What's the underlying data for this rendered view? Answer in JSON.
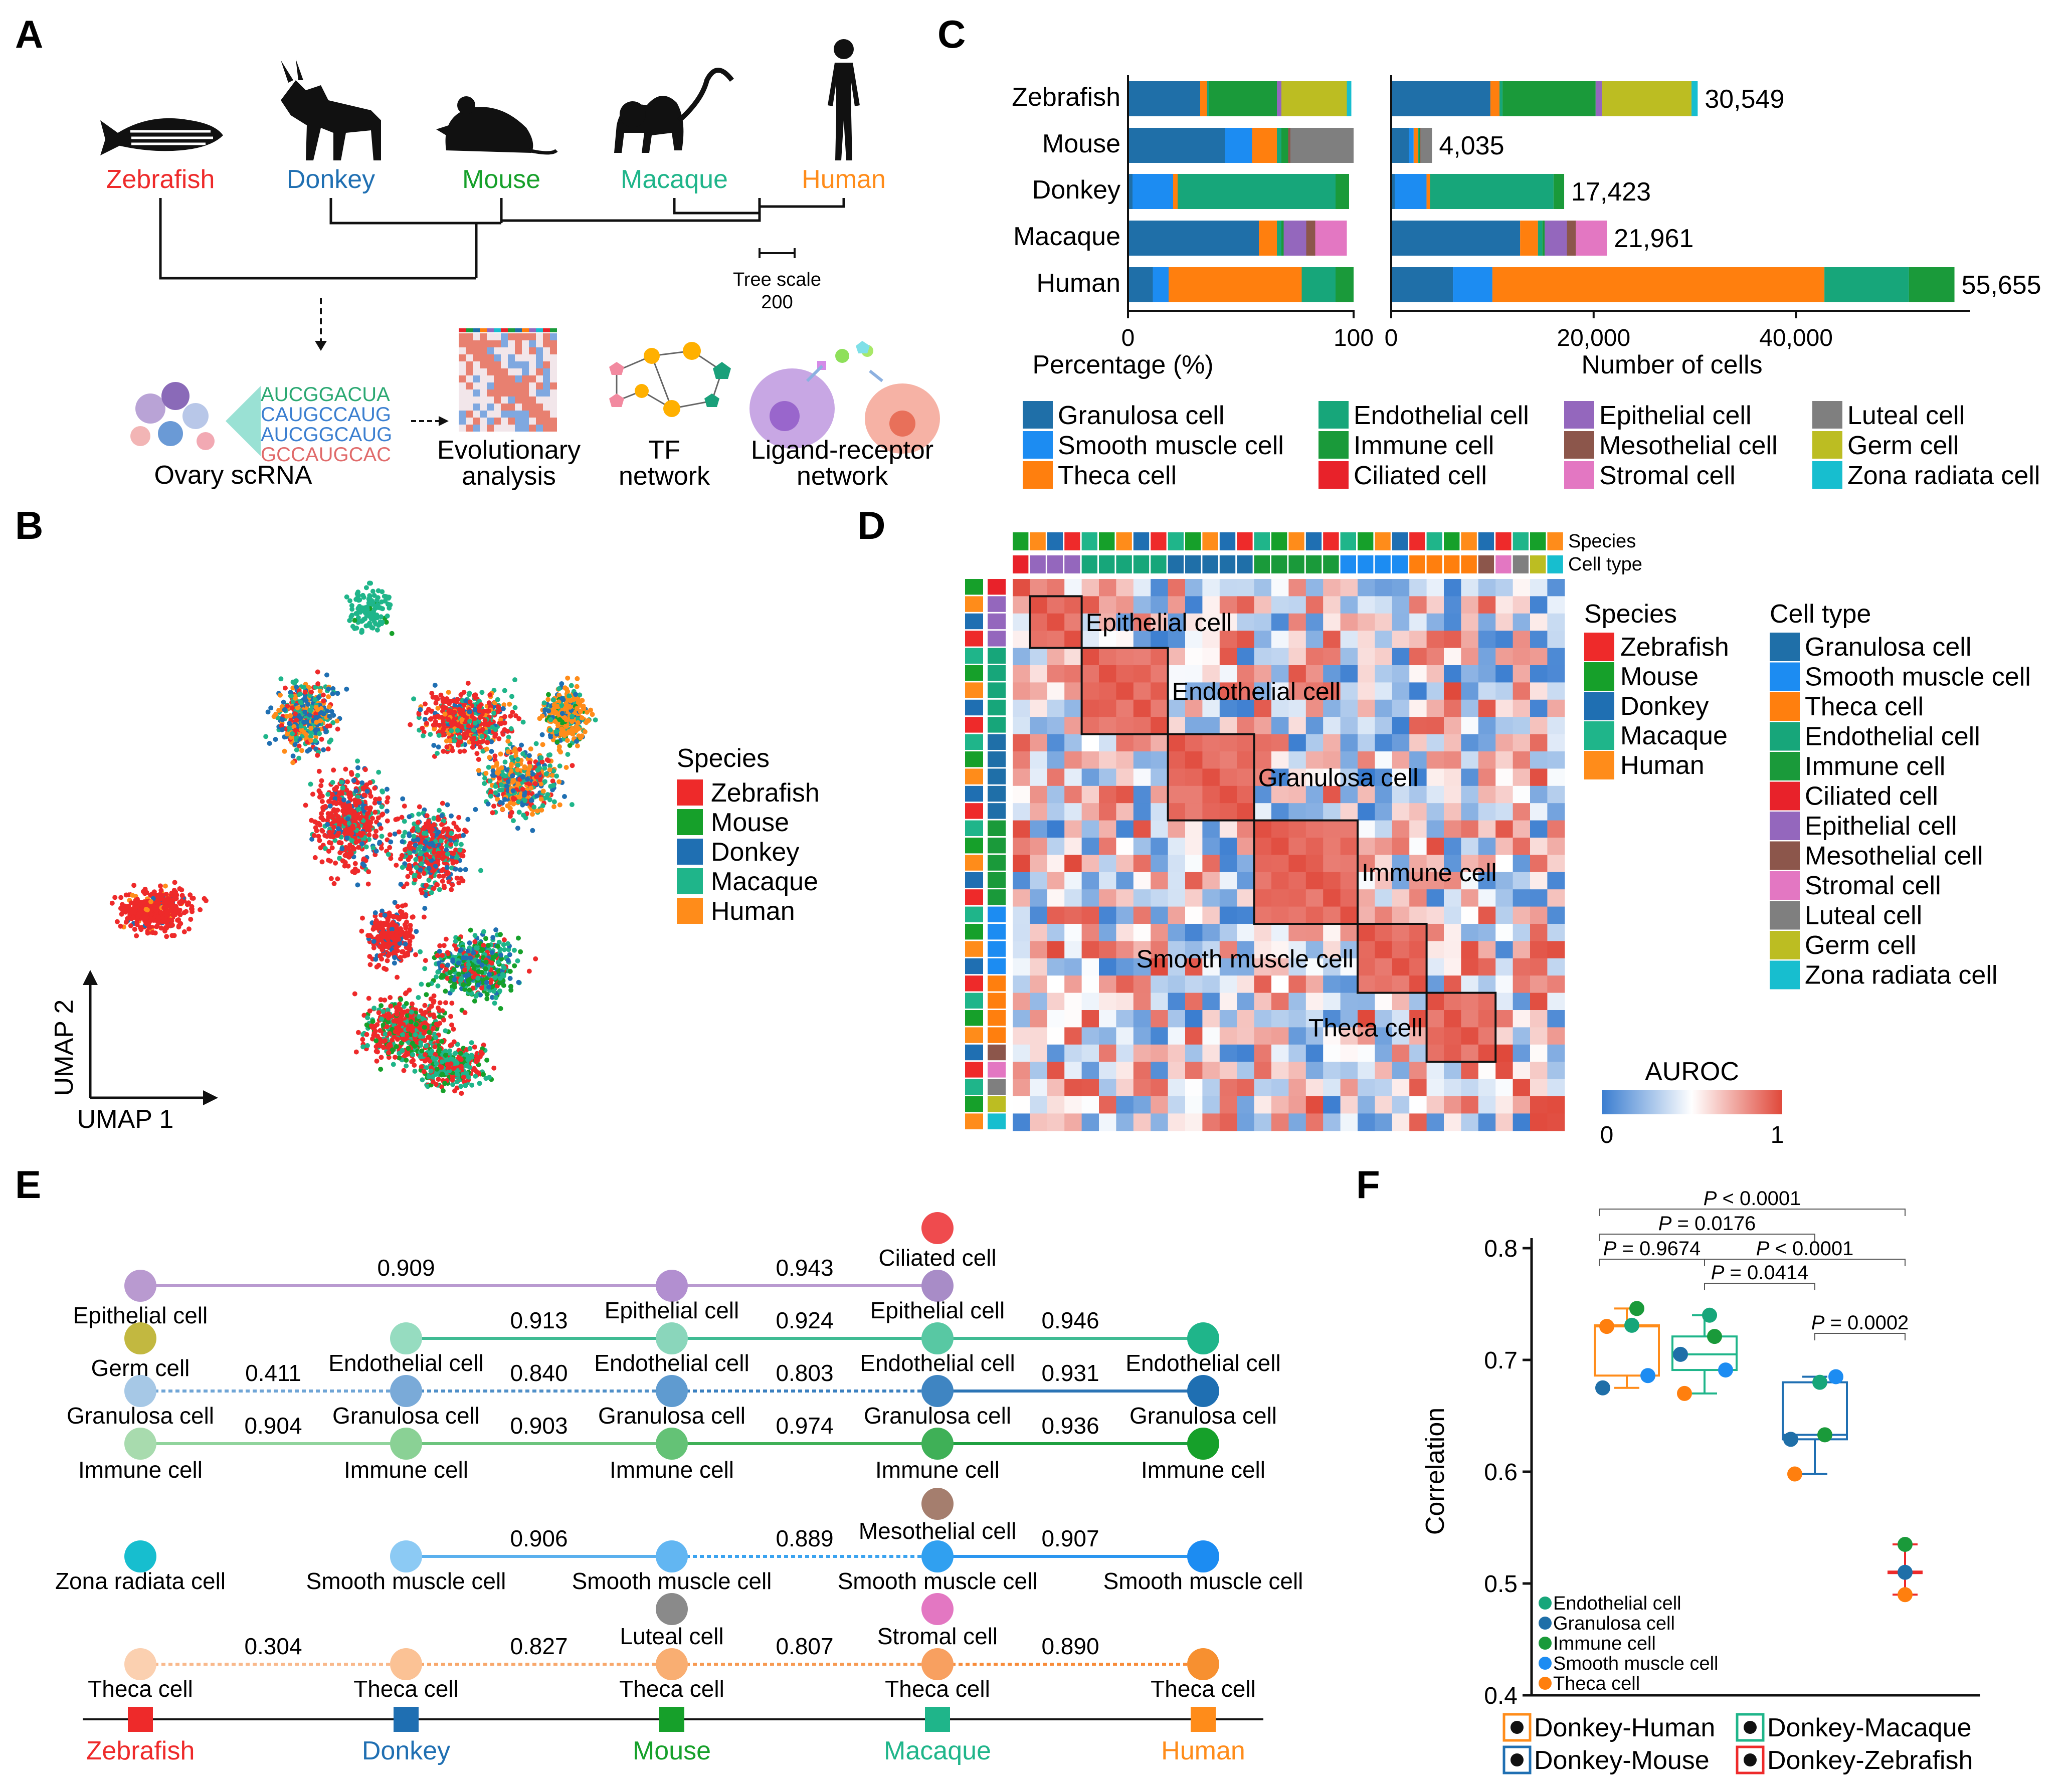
{
  "colors": {
    "Zebrafish": "#ee2a2a",
    "Mouse": "#16a02a",
    "Donkey": "#1f6fb2",
    "Macaque": "#1fb58a",
    "Human": "#ff8c1a",
    "Granulosa cell": "#1f6fa8",
    "Smooth muscle cell": "#1c8cf2",
    "Theca cell": "#ff7f0e",
    "Endothelial cell": "#17a67a",
    "Immune cell": "#1a9a3a",
    "Ciliated cell": "#e8222a",
    "Epithelial cell": "#9467bd",
    "Mesothelial cell": "#8c564b",
    "Stromal cell": "#e377c2",
    "Luteal cell": "#7f7f7f",
    "Germ cell": "#bcbd22",
    "Zona radiata cell": "#17becf"
  },
  "panelA": {
    "letter": "A",
    "species": [
      "Zebrafish",
      "Donkey",
      "Mouse",
      "Macaque",
      "Human"
    ],
    "tree_scale_label": "Tree scale",
    "tree_scale_value": "200",
    "seq_lines": [
      "AUCGGACUA",
      "CAUGCCAUG",
      "AUCGGCAUG",
      "GCCAUGCAC"
    ],
    "workflow": [
      "Ovary scRNA",
      "Evolutionary analysis",
      "TF network",
      "Ligand-receptor network"
    ]
  },
  "panelB": {
    "letter": "B",
    "legend_title": "Species",
    "legend": [
      "Zebrafish",
      "Mouse",
      "Donkey",
      "Macaque",
      "Human"
    ],
    "xlabel": "UMAP 1",
    "ylabel": "UMAP 2"
  },
  "panelC": {
    "letter": "C",
    "xlabel_left": "Percentage (%)",
    "xlabel_right": "Number of cells",
    "ticks_left": [
      "0",
      "100"
    ],
    "ticks_right": [
      "0",
      "20,000",
      "40,000"
    ],
    "legend": [
      "Granulosa cell",
      "Smooth muscle cell",
      "Theca cell",
      "Endothelial cell",
      "Immune cell",
      "Ciliated cell",
      "Epithelial cell",
      "Mesothelial cell",
      "Stromal cell",
      "Luteal cell",
      "Germ cell",
      "Zona radiata cell"
    ]
  },
  "chart_data": [
    {
      "type": "bar",
      "subtype": "stacked-horizontal",
      "categories": [
        "Zebrafish",
        "Mouse",
        "Donkey",
        "Macaque",
        "Human"
      ],
      "xlabel": "Percentage (%)",
      "xlim": [
        0,
        100
      ],
      "series": [
        {
          "name": "Granulosa cell",
          "values": [
            32,
            43,
            2,
            58,
            11
          ]
        },
        {
          "name": "Smooth muscle cell",
          "values": [
            0,
            12,
            18,
            0,
            7
          ]
        },
        {
          "name": "Theca cell",
          "values": [
            3,
            11,
            2,
            8,
            59
          ]
        },
        {
          "name": "Endothelial cell",
          "values": [
            1,
            2,
            70,
            2,
            15
          ]
        },
        {
          "name": "Immune cell",
          "values": [
            30,
            3,
            6,
            1,
            8
          ]
        },
        {
          "name": "Ciliated cell",
          "values": [
            0,
            0,
            0,
            0,
            0
          ]
        },
        {
          "name": "Epithelial cell",
          "values": [
            2,
            0,
            0,
            10,
            0
          ]
        },
        {
          "name": "Mesothelial cell",
          "values": [
            0,
            1,
            0,
            4,
            0
          ]
        },
        {
          "name": "Stromal cell",
          "values": [
            0,
            0,
            0,
            14,
            0
          ]
        },
        {
          "name": "Luteal cell",
          "values": [
            0,
            28,
            0,
            0,
            0
          ]
        },
        {
          "name": "Germ cell",
          "values": [
            29,
            0,
            0,
            0,
            0
          ]
        },
        {
          "name": "Zona radiata cell",
          "values": [
            2,
            0,
            0,
            0,
            0
          ]
        }
      ]
    },
    {
      "type": "bar",
      "subtype": "stacked-horizontal",
      "categories": [
        "Zebrafish",
        "Mouse",
        "Donkey",
        "Macaque",
        "Human"
      ],
      "xlabel": "Number of cells",
      "xlim": [
        0,
        60000
      ],
      "totals": [
        "30,549",
        "4,035",
        "17,423",
        "21,961",
        "55,655"
      ],
      "series": [
        {
          "name": "Granulosa cell",
          "values": [
            9800,
            1740,
            350,
            12740,
            6100
          ]
        },
        {
          "name": "Smooth muscle cell",
          "values": [
            0,
            480,
            3140,
            0,
            3900
          ]
        },
        {
          "name": "Theca cell",
          "values": [
            900,
            440,
            350,
            1760,
            32800
          ]
        },
        {
          "name": "Endothelial cell",
          "values": [
            300,
            80,
            12200,
            440,
            8350
          ]
        },
        {
          "name": "Immune cell",
          "values": [
            9200,
            120,
            1050,
            220,
            4500
          ]
        },
        {
          "name": "Ciliated cell",
          "values": [
            0,
            0,
            0,
            0,
            0
          ]
        },
        {
          "name": "Epithelial cell",
          "values": [
            610,
            0,
            0,
            2200,
            0
          ]
        },
        {
          "name": "Mesothelial cell",
          "values": [
            0,
            40,
            0,
            880,
            0
          ]
        },
        {
          "name": "Stromal cell",
          "values": [
            0,
            0,
            0,
            3070,
            0
          ]
        },
        {
          "name": "Luteal cell",
          "values": [
            0,
            1130,
            0,
            0,
            0
          ]
        },
        {
          "name": "Germ cell",
          "values": [
            8860,
            0,
            0,
            0,
            0
          ]
        },
        {
          "name": "Zona radiata cell",
          "values": [
            610,
            0,
            0,
            0,
            0
          ]
        }
      ]
    },
    {
      "type": "heatmap",
      "title": "AUROC",
      "range": [
        0,
        1
      ],
      "range_labels": [
        "0",
        "1"
      ],
      "column_tracks": [
        "Species",
        "Cell type"
      ],
      "block_labels": [
        "Epithelial cell",
        "Endothelial cell",
        "Granulosa cell",
        "Immune cell",
        "Smooth muscle cell",
        "Theca cell"
      ],
      "legend_species_title": "Species",
      "legend_species": [
        "Zebrafish",
        "Mouse",
        "Donkey",
        "Macaque",
        "Human"
      ],
      "legend_celltype_title": "Cell type",
      "legend_celltype": [
        "Granulosa cell",
        "Smooth muscle cell",
        "Theca cell",
        "Endothelial cell",
        "Immune cell",
        "Ciliated cell",
        "Epithelial cell",
        "Mesothelial cell",
        "Stromal cell",
        "Luteal cell",
        "Germ cell",
        "Zona radiata cell"
      ]
    },
    {
      "type": "scatter",
      "subtype": "boxplot",
      "ylabel": "Correlation",
      "ylim": [
        0.4,
        0.8
      ],
      "yticks": [
        "0.4",
        "0.5",
        "0.6",
        "0.7",
        "0.8"
      ],
      "groups": [
        "Donkey-Human",
        "Donkey-Macaque",
        "Donkey-Mouse",
        "Donkey-Zebrafish"
      ],
      "points": [
        {
          "group": "Donkey-Human",
          "celltype": "Endothelial cell",
          "y": 0.731
        },
        {
          "group": "Donkey-Human",
          "celltype": "Granulosa cell",
          "y": 0.675
        },
        {
          "group": "Donkey-Human",
          "celltype": "Immune cell",
          "y": 0.746
        },
        {
          "group": "Donkey-Human",
          "celltype": "Smooth muscle cell",
          "y": 0.686
        },
        {
          "group": "Donkey-Human",
          "celltype": "Theca cell",
          "y": 0.73
        },
        {
          "group": "Donkey-Macaque",
          "celltype": "Endothelial cell",
          "y": 0.74
        },
        {
          "group": "Donkey-Macaque",
          "celltype": "Granulosa cell",
          "y": 0.705
        },
        {
          "group": "Donkey-Macaque",
          "celltype": "Immune cell",
          "y": 0.721
        },
        {
          "group": "Donkey-Macaque",
          "celltype": "Smooth muscle cell",
          "y": 0.691
        },
        {
          "group": "Donkey-Macaque",
          "celltype": "Theca cell",
          "y": 0.67
        },
        {
          "group": "Donkey-Mouse",
          "celltype": "Endothelial cell",
          "y": 0.68
        },
        {
          "group": "Donkey-Mouse",
          "celltype": "Granulosa cell",
          "y": 0.629
        },
        {
          "group": "Donkey-Mouse",
          "celltype": "Immune cell",
          "y": 0.633
        },
        {
          "group": "Donkey-Mouse",
          "celltype": "Smooth muscle cell",
          "y": 0.685
        },
        {
          "group": "Donkey-Mouse",
          "celltype": "Theca cell",
          "y": 0.598
        },
        {
          "group": "Donkey-Zebrafish",
          "celltype": "Immune cell",
          "y": 0.535
        },
        {
          "group": "Donkey-Zebrafish",
          "celltype": "Granulosa cell",
          "y": 0.51
        },
        {
          "group": "Donkey-Zebrafish",
          "celltype": "Theca cell",
          "y": 0.49
        }
      ],
      "pvalues": [
        {
          "label": "P = 0.9674",
          "p": "P",
          "rest": " = 0.9674"
        },
        {
          "label": "P = 0.0176",
          "p": "P",
          "rest": " = 0.0176"
        },
        {
          "label": "P < 0.0001",
          "p": "P",
          "rest": " < 0.0001"
        },
        {
          "label": "P < 0.0001",
          "p": "P",
          "rest": " < 0.0001"
        },
        {
          "label": "P = 0.0414",
          "p": "P",
          "rest": " = 0.0414"
        },
        {
          "label": "P = 0.0002",
          "p": "P",
          "rest": " = 0.0002"
        }
      ],
      "celltype_legend": [
        "Endothelial cell",
        "Granulosa cell",
        "Immune cell",
        "Smooth muscle cell",
        "Theca cell"
      ]
    }
  ],
  "panelD": {
    "letter": "D",
    "track_species": "Species",
    "track_celltype": "Cell type"
  },
  "panelE": {
    "letter": "E",
    "species": [
      "Zebrafish",
      "Donkey",
      "Mouse",
      "Macaque",
      "Human"
    ],
    "rows": [
      {
        "edges": [
          "0.909",
          "0.943"
        ]
      },
      {
        "edges": [
          "0.913",
          "0.924",
          "0.946"
        ]
      },
      {
        "edges": [
          "0.411",
          "0.840",
          "0.803",
          "0.931"
        ]
      },
      {
        "edges": [
          "0.904",
          "0.903",
          "0.974",
          "0.936"
        ]
      },
      {
        "edges": [
          "0.906",
          "0.889",
          "0.907"
        ]
      },
      {
        "edges": [
          "0.304",
          "0.827",
          "0.807",
          "0.890"
        ]
      }
    ],
    "labels": {
      "ciliated": "Ciliated cell",
      "epithelial": "Epithelial cell",
      "germ": "Germ cell",
      "endothelial": "Endothelial cell",
      "granulosa": "Granulosa cell",
      "immune": "Immune cell",
      "mesothelial": "Mesothelial cell",
      "zona": "Zona radiata cell",
      "smooth": "Smooth muscle cell",
      "luteal": "Luteal cell",
      "stromal": "Stromal cell",
      "theca": "Theca cell"
    }
  },
  "panelF": {
    "letter": "F"
  }
}
